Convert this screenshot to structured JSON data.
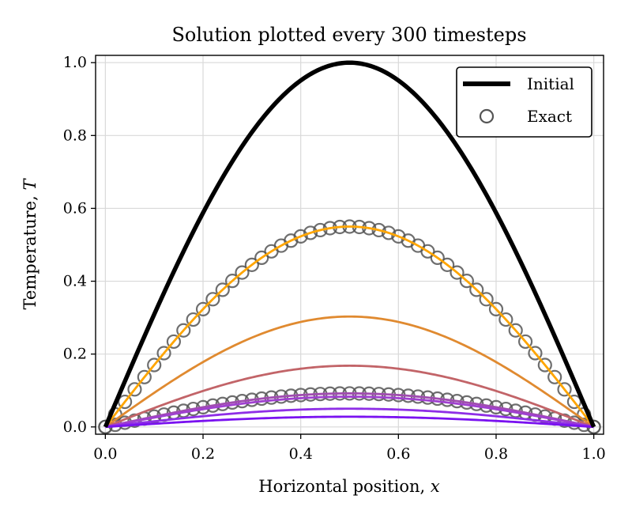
{
  "chart_data": {
    "type": "line",
    "title": "Solution plotted every 300 timesteps",
    "xlabel_text": "Horizontal position, ",
    "xlabel_var": "x",
    "ylabel_text": "Temperature, ",
    "ylabel_var": "T",
    "xlim": [
      -0.02,
      1.02
    ],
    "ylim": [
      -0.02,
      1.02
    ],
    "grid": true,
    "legend_position": "top-right",
    "x_ticks": [
      "0.0",
      "0.2",
      "0.4",
      "0.6",
      "0.8",
      "1.0"
    ],
    "x_tick_values": [
      0.0,
      0.2,
      0.4,
      0.6,
      0.8,
      1.0
    ],
    "y_ticks": [
      "0.0",
      "0.2",
      "0.4",
      "0.6",
      "0.8",
      "1.0"
    ],
    "y_tick_values": [
      0.0,
      0.2,
      0.4,
      0.6,
      0.8,
      1.0
    ],
    "profile": "sin(pi x)",
    "series": [
      {
        "name": "Initial",
        "amplitude": 1.0,
        "color": "#000000",
        "style": "thick-line",
        "legend": true
      },
      {
        "name": "Exact",
        "amplitude": 0.55,
        "color": "#555555",
        "style": "open-circles",
        "legend": true
      },
      {
        "amplitude": 0.55,
        "color": "#ffa500",
        "style": "line"
      },
      {
        "amplitude": 0.303,
        "color": "#e08a30",
        "style": "line"
      },
      {
        "amplitude": 0.168,
        "color": "#c26468",
        "style": "line"
      },
      {
        "amplitude": 0.092,
        "color": "#555555",
        "style": "open-circles"
      },
      {
        "amplitude": 0.092,
        "color": "#a04cb0",
        "style": "line"
      },
      {
        "amplitude": 0.083,
        "color": "#a040d0",
        "style": "line"
      },
      {
        "amplitude": 0.05,
        "color": "#8e2ee6",
        "style": "line"
      },
      {
        "amplitude": 0.028,
        "color": "#7a12f0",
        "style": "line"
      }
    ]
  }
}
